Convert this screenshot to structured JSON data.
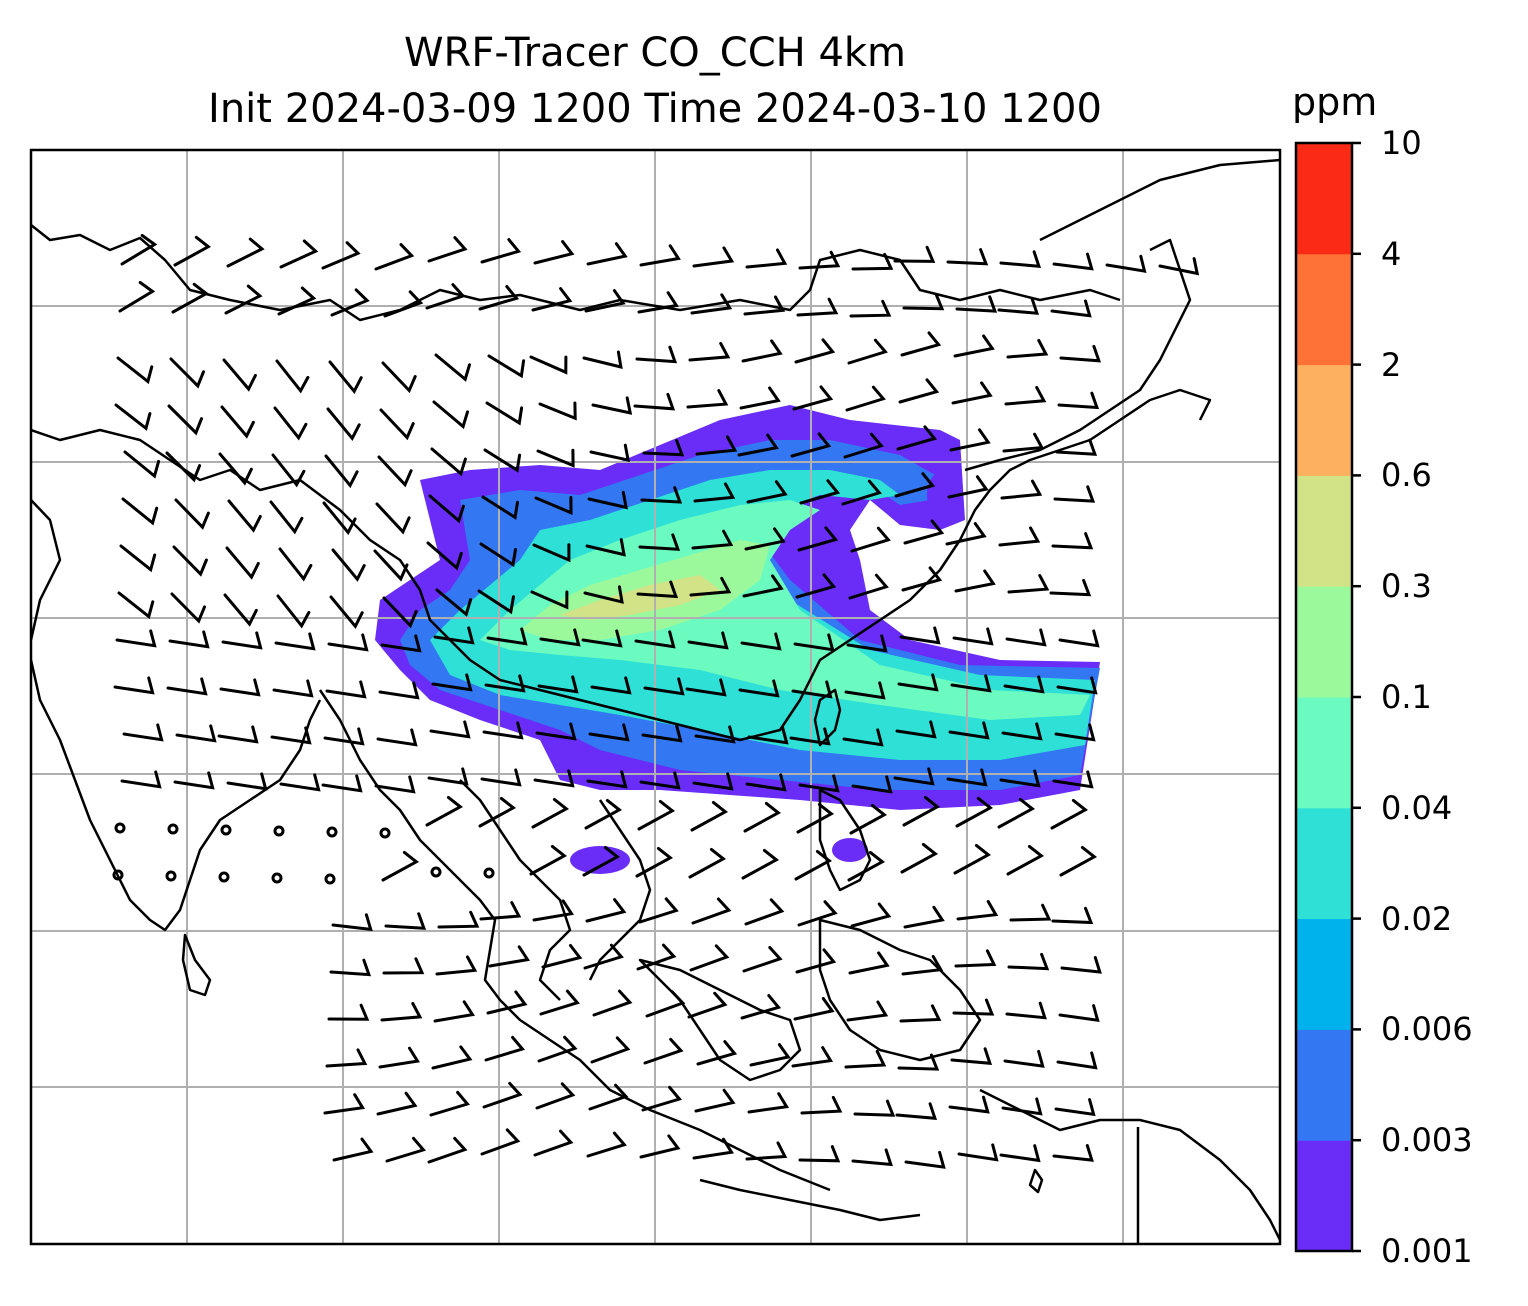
{
  "title_line1": "WRF-Tracer CO_CCH 4km",
  "title_line2": "Init 2024-03-09 1200 Time 2024-03-10 1200",
  "colorbar": {
    "unit": "ppm",
    "tick_labels": [
      "0.001",
      "0.003",
      "0.006",
      "0.02",
      "0.04",
      "0.1",
      "0.3",
      "0.6",
      "2",
      "4",
      "10"
    ],
    "colors": [
      "#6a2cf7",
      "#3377f2",
      "#00b2ec",
      "#2ee0d6",
      "#6bfbc0",
      "#9cf99b",
      "#d2e286",
      "#feb061",
      "#fe7238",
      "#fa2a17"
    ]
  },
  "map": {
    "gridlines": true,
    "coastlines": true,
    "overlay": "wind barbs",
    "shaded_field": "CO_CCH tracer concentration"
  }
}
